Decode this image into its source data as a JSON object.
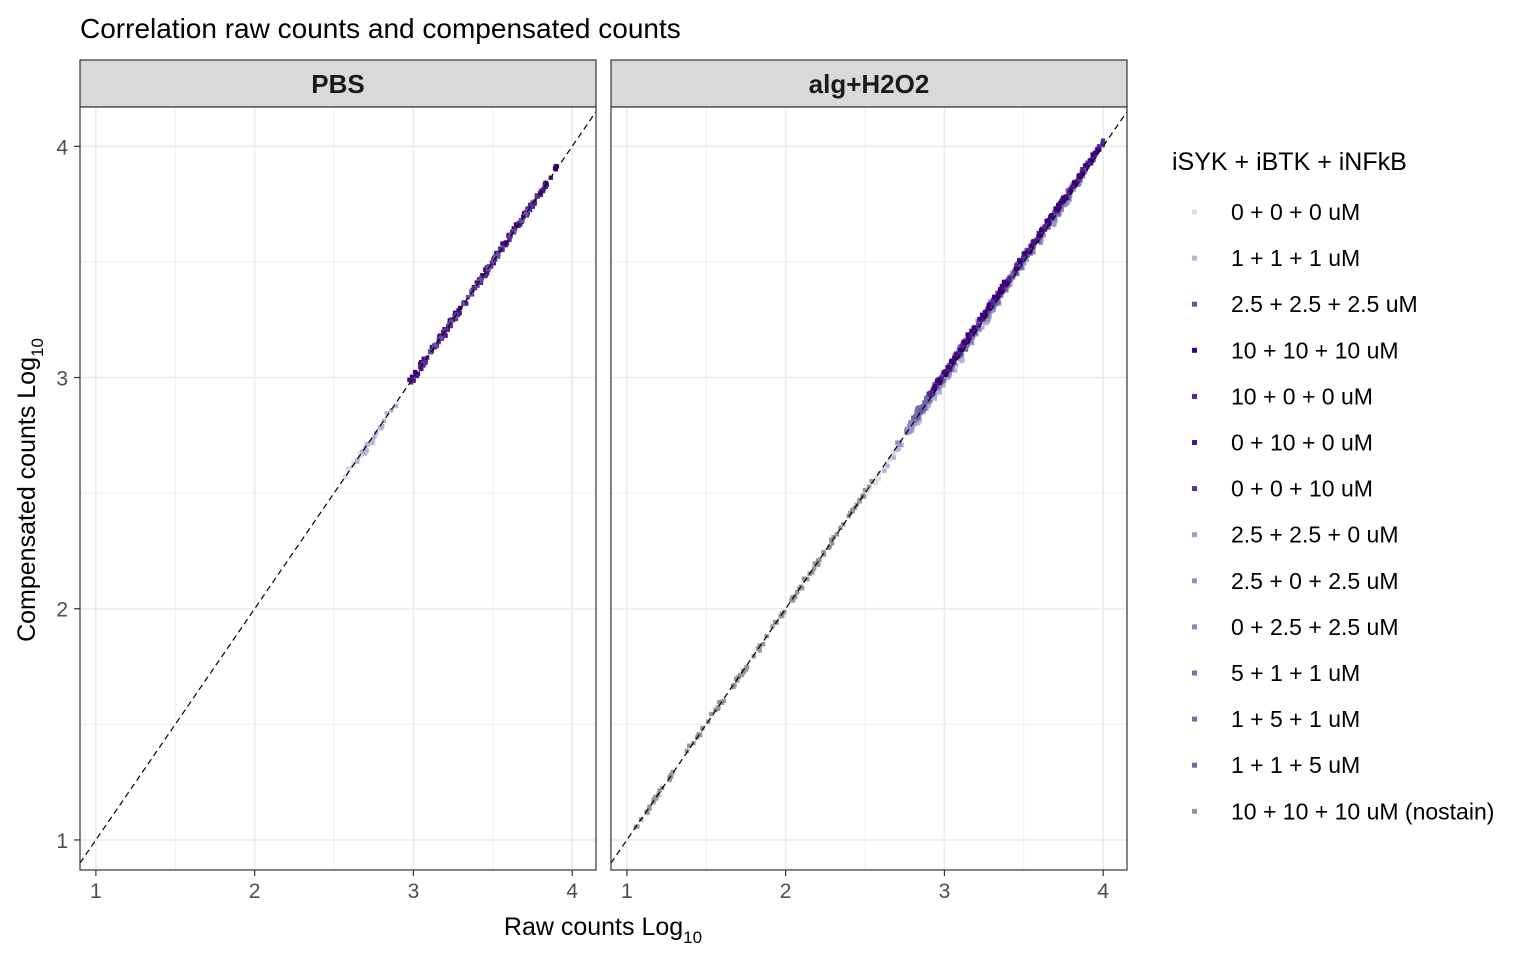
{
  "chart_data": {
    "type": "scatter",
    "title": "Correlation raw counts and compensated counts",
    "xlabel": "Raw counts Log",
    "xlabel_sub": "10",
    "ylabel": "Compensated counts Log",
    "ylabel_sub": "10",
    "xlim": [
      0.9,
      4.15
    ],
    "ylim": [
      0.87,
      4.17
    ],
    "x_ticks": [
      "1",
      "2",
      "3",
      "4"
    ],
    "y_ticks": [
      "1",
      "2",
      "3",
      "4"
    ],
    "reference_line": "y = x (dashed)",
    "grid": true,
    "legend_position": "right",
    "legend_title": "iSYK + iBTK + iNFkB",
    "series": [
      {
        "name": "0 + 0 + 0 uM",
        "color": "#dcdaeb"
      },
      {
        "name": "1 + 1 + 1 uM",
        "color": "#b4b2d6"
      },
      {
        "name": "2.5 + 2.5 + 2.5 uM",
        "color": "#6a51a3"
      },
      {
        "name": "10 + 10 + 10 uM",
        "color": "#3f007d"
      },
      {
        "name": "10 + 0 + 0 uM",
        "color": "#54278f"
      },
      {
        "name": "0 + 10 + 0 uM",
        "color": "#4a1486"
      },
      {
        "name": "0 + 0 + 10 uM",
        "color": "#5e2f98"
      },
      {
        "name": "2.5 + 2.5 + 0 uM",
        "color": "#9e9ac8"
      },
      {
        "name": "2.5 + 0 + 2.5 uM",
        "color": "#948fc4"
      },
      {
        "name": "0 + 2.5 + 2.5 uM",
        "color": "#8c85c0"
      },
      {
        "name": "5 + 1 + 1 uM",
        "color": "#7b6db5"
      },
      {
        "name": "1 + 5 + 1 uM",
        "color": "#776ab3"
      },
      {
        "name": "1 + 1 + 5 uM",
        "color": "#7064ae"
      },
      {
        "name": "10 + 10 + 10 uM (nostain)",
        "color": "#969696"
      }
    ],
    "panels": [
      {
        "label": "PBS",
        "segments": [
          {
            "series": 0,
            "x0": 2.55,
            "x1": 2.72,
            "dy": 0.0,
            "jitter": 0.025,
            "n": 14
          },
          {
            "series": 1,
            "x0": 2.62,
            "x1": 2.92,
            "dy": -0.01,
            "jitter": 0.03,
            "n": 18
          },
          {
            "series": 3,
            "x0": 2.95,
            "x1": 3.92,
            "dy": 0.01,
            "jitter": 0.012,
            "n": 60
          },
          {
            "series": 4,
            "x0": 2.98,
            "x1": 3.9,
            "dy": 0.0,
            "jitter": 0.015,
            "n": 50
          },
          {
            "series": 5,
            "x0": 3.0,
            "x1": 3.85,
            "dy": -0.01,
            "jitter": 0.015,
            "n": 45
          },
          {
            "series": 6,
            "x0": 3.05,
            "x1": 3.8,
            "dy": 0.0,
            "jitter": 0.015,
            "n": 40
          },
          {
            "series": 2,
            "x0": 3.1,
            "x1": 3.75,
            "dy": 0.0,
            "jitter": 0.015,
            "n": 30
          }
        ]
      },
      {
        "label": "alg+H2O2",
        "segments": [
          {
            "series": 13,
            "x0": 1.0,
            "x1": 2.55,
            "dy": 0.0,
            "jitter": 0.02,
            "n": 120
          },
          {
            "series": 0,
            "x0": 2.5,
            "x1": 3.0,
            "dy": -0.01,
            "jitter": 0.02,
            "n": 25
          },
          {
            "series": 1,
            "x0": 2.6,
            "x1": 3.3,
            "dy": -0.02,
            "jitter": 0.025,
            "n": 40
          },
          {
            "series": 7,
            "x0": 2.7,
            "x1": 3.8,
            "dy": -0.01,
            "jitter": 0.03,
            "n": 70
          },
          {
            "series": 8,
            "x0": 2.7,
            "x1": 3.8,
            "dy": 0.01,
            "jitter": 0.03,
            "n": 70
          },
          {
            "series": 9,
            "x0": 2.75,
            "x1": 3.9,
            "dy": 0.0,
            "jitter": 0.03,
            "n": 70
          },
          {
            "series": 10,
            "x0": 2.8,
            "x1": 3.95,
            "dy": 0.02,
            "jitter": 0.025,
            "n": 60
          },
          {
            "series": 11,
            "x0": 2.8,
            "x1": 3.95,
            "dy": 0.0,
            "jitter": 0.025,
            "n": 60
          },
          {
            "series": 12,
            "x0": 2.8,
            "x1": 4.0,
            "dy": 0.01,
            "jitter": 0.025,
            "n": 60
          },
          {
            "series": 2,
            "x0": 2.85,
            "x1": 4.0,
            "dy": 0.015,
            "jitter": 0.02,
            "n": 70
          },
          {
            "series": 6,
            "x0": 2.9,
            "x1": 4.0,
            "dy": 0.02,
            "jitter": 0.02,
            "n": 60
          },
          {
            "series": 5,
            "x0": 2.9,
            "x1": 4.0,
            "dy": 0.015,
            "jitter": 0.02,
            "n": 60
          },
          {
            "series": 4,
            "x0": 2.9,
            "x1": 4.0,
            "dy": 0.02,
            "jitter": 0.02,
            "n": 60
          },
          {
            "series": 3,
            "x0": 2.9,
            "x1": 4.0,
            "dy": 0.025,
            "jitter": 0.02,
            "n": 70
          }
        ]
      }
    ]
  }
}
